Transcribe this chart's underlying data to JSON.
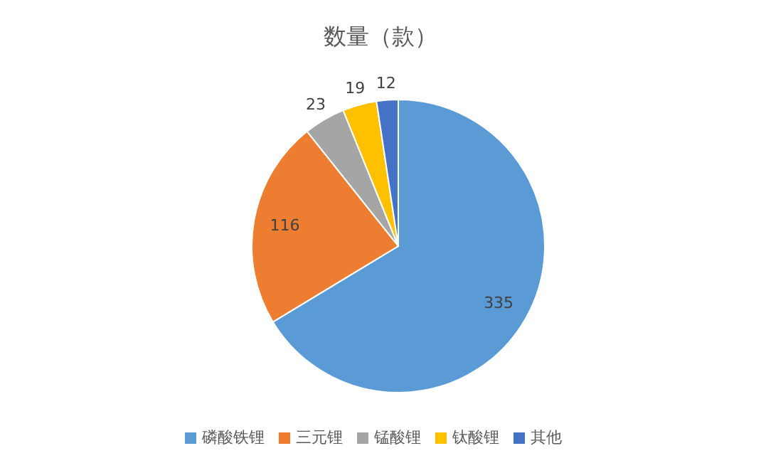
{
  "chart_data": {
    "type": "pie",
    "title": "数量（款）",
    "categories": [
      "磷酸铁锂",
      "三元锂",
      "锰酸锂",
      "钛酸锂",
      "其他"
    ],
    "values": [
      335,
      116,
      23,
      19,
      12
    ],
    "colors": [
      "#5b9bd5",
      "#ed7d31",
      "#a5a5a5",
      "#ffc000",
      "#4472c4"
    ],
    "data_labels": true,
    "legend": "bottom"
  }
}
